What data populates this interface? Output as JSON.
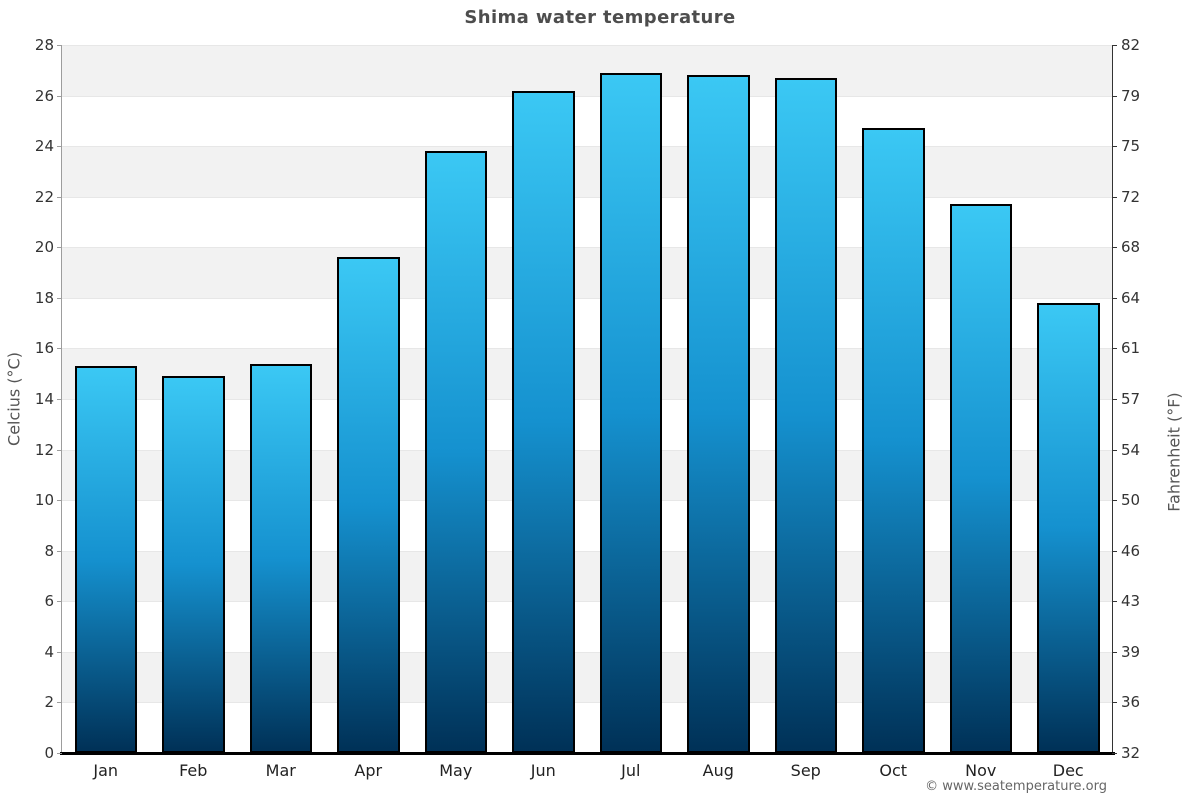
{
  "title": "Shima water temperature",
  "footer": "© www.seatemperature.org",
  "y_axis_left": {
    "label": "Celcius (°C)",
    "ticks": [
      "0",
      "2",
      "4",
      "6",
      "8",
      "10",
      "12",
      "14",
      "16",
      "18",
      "20",
      "22",
      "24",
      "26",
      "28"
    ]
  },
  "y_axis_right": {
    "label": "Fahrenheit (°F)",
    "ticks": [
      "32",
      "36",
      "39",
      "43",
      "46",
      "50",
      "54",
      "57",
      "61",
      "64",
      "68",
      "72",
      "75",
      "79",
      "82"
    ]
  },
  "chart_data": {
    "type": "bar",
    "title": "Shima water temperature",
    "categories": [
      "Jan",
      "Feb",
      "Mar",
      "Apr",
      "May",
      "Jun",
      "Jul",
      "Aug",
      "Sep",
      "Oct",
      "Nov",
      "Dec"
    ],
    "values": [
      15.3,
      14.9,
      15.4,
      19.6,
      23.8,
      26.2,
      26.9,
      26.8,
      26.7,
      24.7,
      21.7,
      17.8
    ],
    "xlabel": "",
    "ylabel": "Celcius (°C)",
    "ylabel_right": "Fahrenheit (°F)",
    "ylim": [
      0,
      28
    ],
    "ytick_step_celsius": 2,
    "grid": "alternating-bands",
    "legend": "none",
    "colors": {
      "bar_gradient_top": "#3bc8f4",
      "bar_gradient_mid": "#1591cf",
      "bar_gradient_bottom": "#003157",
      "bar_border": "#000000",
      "band_gray": "#f2f2f2",
      "band_white": "#ffffff",
      "grid_line": "#e7e7e7",
      "title_text": "#4d4d4d",
      "tick_text": "#333333",
      "footer_text": "#666666"
    }
  }
}
